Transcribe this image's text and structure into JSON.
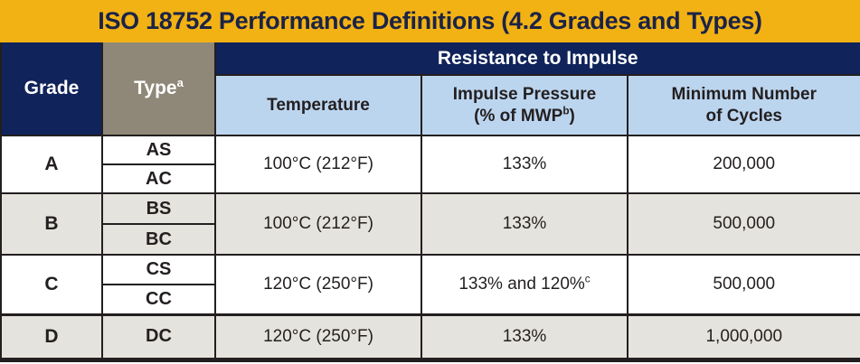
{
  "title": "ISO 18752 Performance Definitions (4.2 Grades and Types)",
  "table": {
    "headers": {
      "grade": "Grade",
      "type": "Type",
      "type_footnote": "a",
      "impulse_group": "Resistance to Impulse",
      "temperature": "Temperature",
      "impulse_pressure_line1": "Impulse Pressure",
      "impulse_pressure_line2_open": "(% of MWP",
      "impulse_pressure_footnote": "b",
      "impulse_pressure_line2_close": ")",
      "min_cycles_line1": "Minimum Number",
      "min_cycles_line2": "of Cycles"
    },
    "rows": [
      {
        "grade": "A",
        "type_top": "AS",
        "type_bottom": "AC",
        "temperature": "100°C (212°F)",
        "impulse_pressure": "133%",
        "impulse_pressure_footnote": "",
        "min_cycles": "200,000"
      },
      {
        "grade": "B",
        "type_top": "BS",
        "type_bottom": "BC",
        "temperature": "100°C (212°F)",
        "impulse_pressure": "133%",
        "impulse_pressure_footnote": "",
        "min_cycles": "500,000"
      },
      {
        "grade": "C",
        "type_top": "CS",
        "type_bottom": "CC",
        "temperature": "120°C (250°F)",
        "impulse_pressure": "133% and 120%",
        "impulse_pressure_footnote": "c",
        "min_cycles": "500,000"
      },
      {
        "grade": "D",
        "type_top": "DC",
        "temperature": "120°C (250°F)",
        "impulse_pressure": "133%",
        "impulse_pressure_footnote": "",
        "min_cycles": "1,000,000"
      }
    ]
  },
  "colors": {
    "gold": "#F2B214",
    "navy": "#10235A",
    "taupe": "#8F8878",
    "light_blue": "#BCD5EF",
    "row_gray": "#E5E3DD",
    "row_white": "#FFFFFF",
    "ink": "#231F20",
    "header_text": "#FFFFFF",
    "title_text": "#1B2347"
  }
}
